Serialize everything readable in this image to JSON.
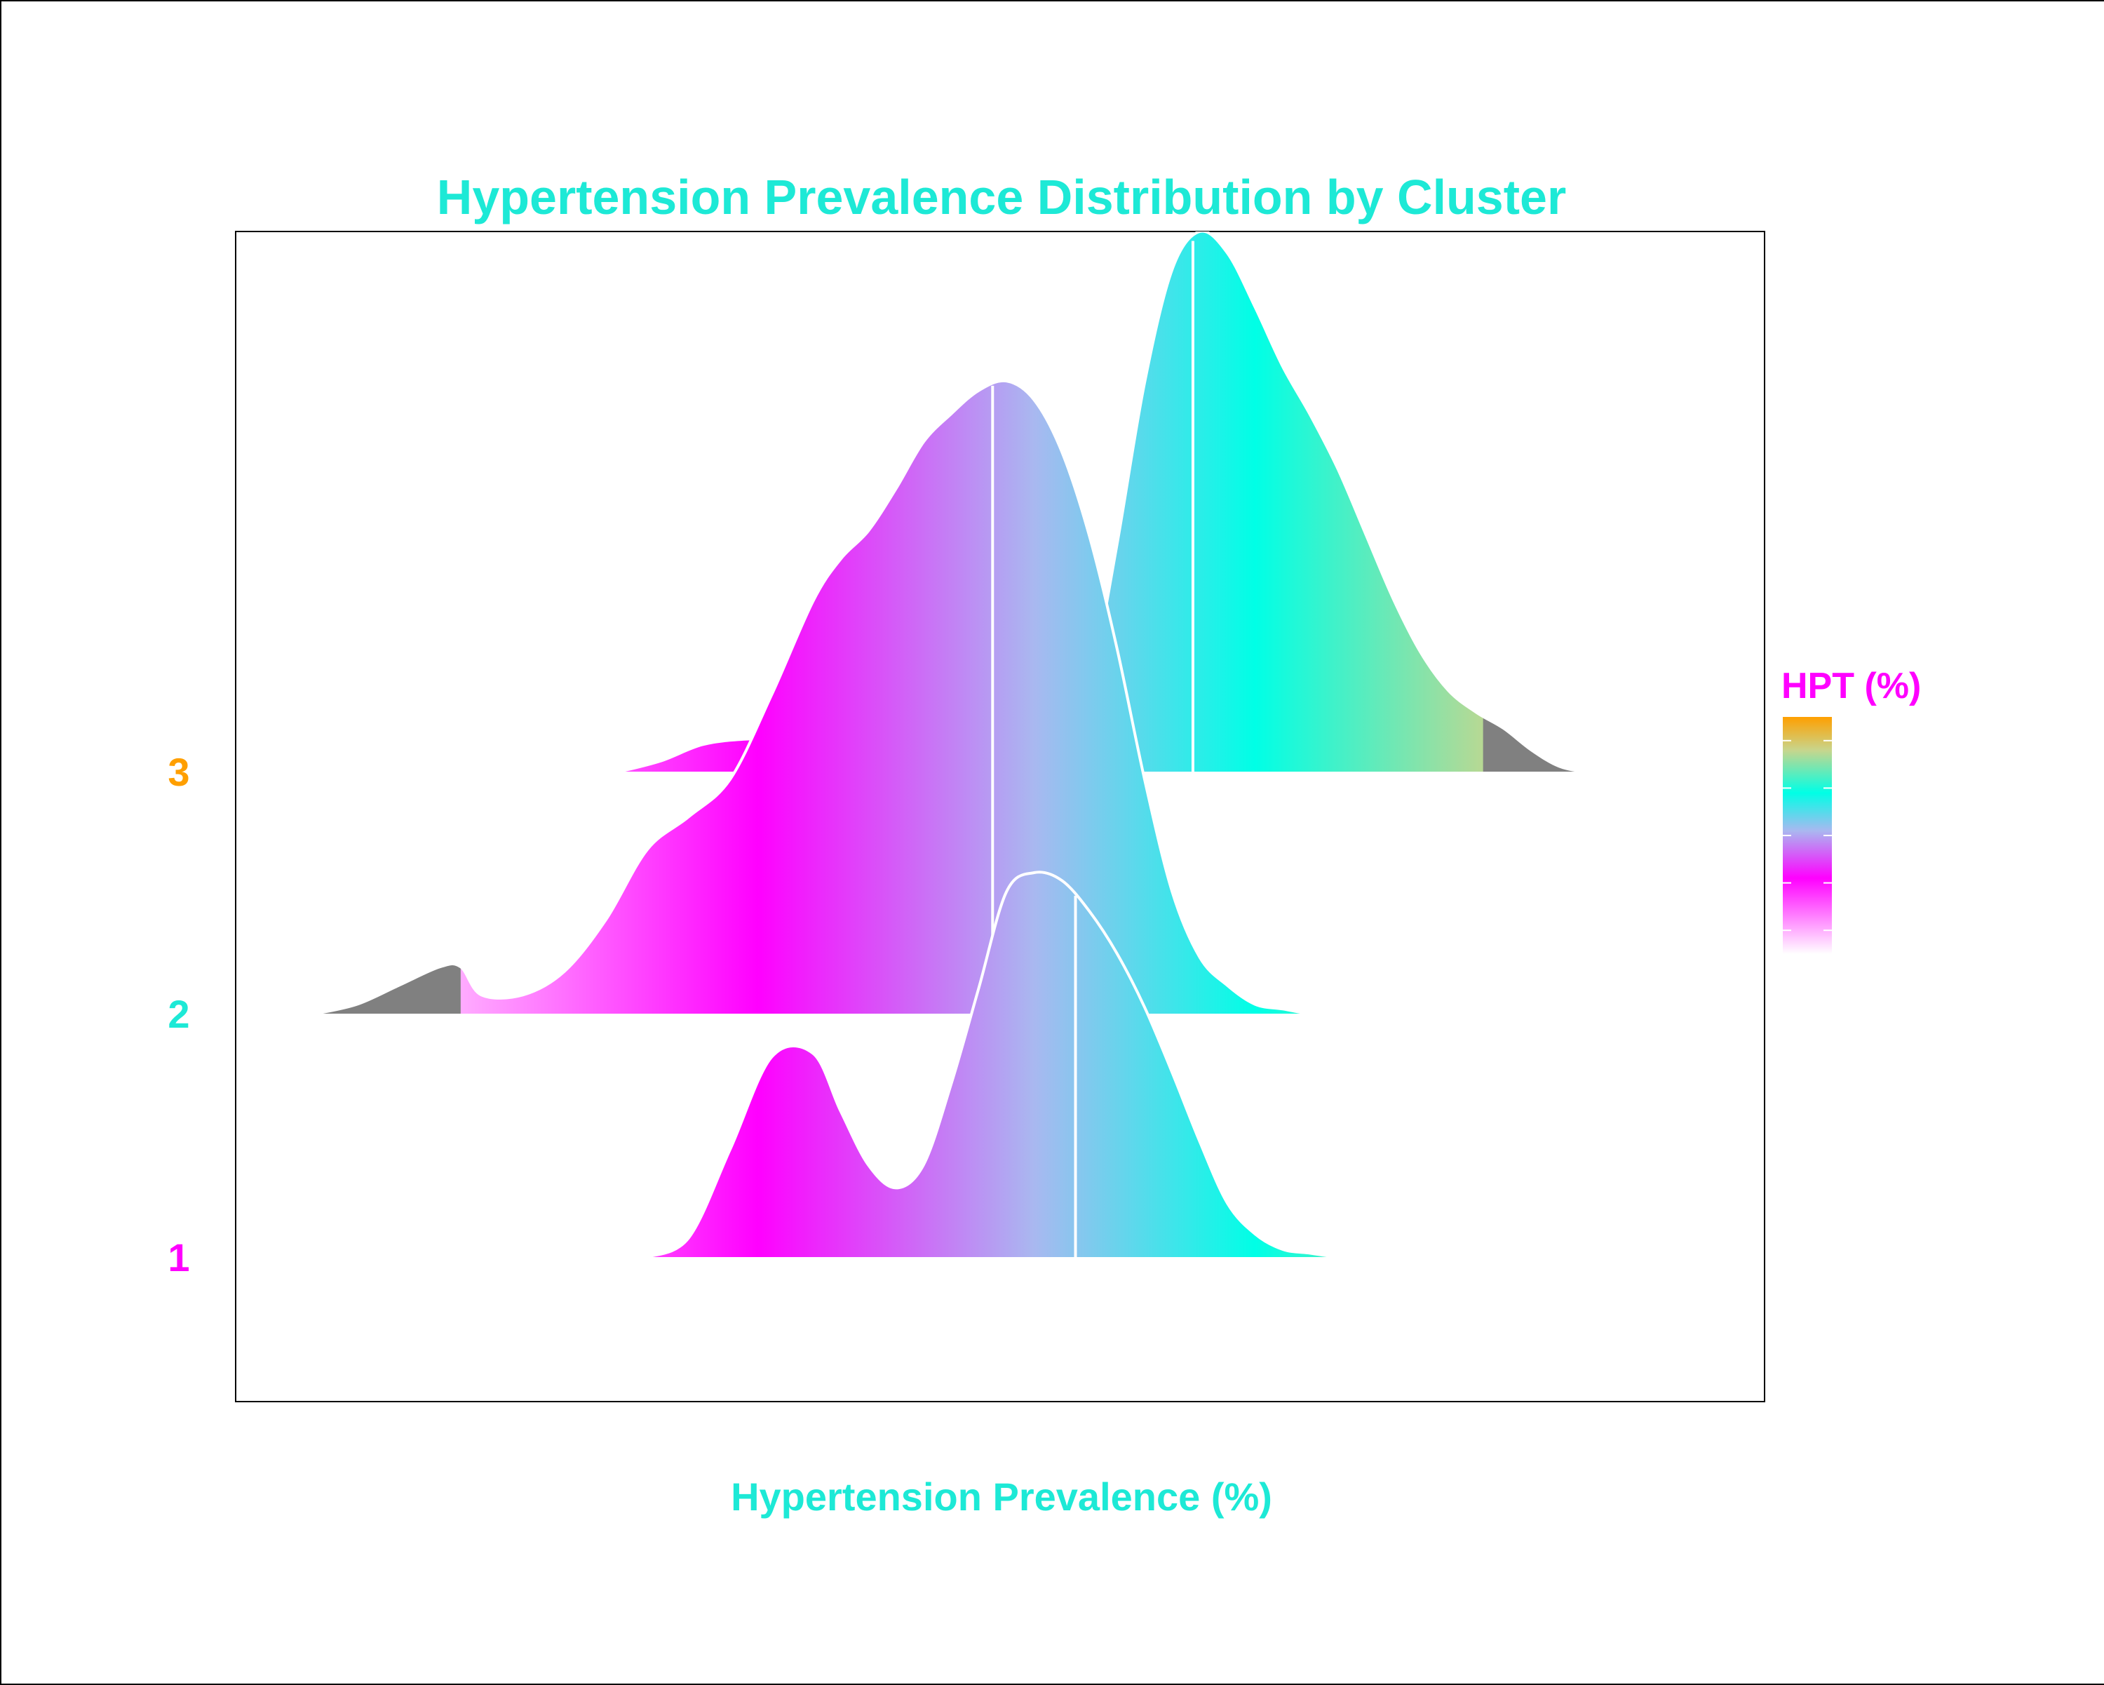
{
  "chart_data": {
    "type": "ridgeline",
    "title": "Hypertension Prevalence Distribution by Cluster",
    "xlabel": "Hypertension Prevalence (%)",
    "ylabel": "",
    "xlim": [
      0,
      100
    ],
    "legend": {
      "title": "HPT (%)",
      "placement": "right",
      "kind": "colorbar"
    },
    "colorscale": [
      {
        "value": 0.0,
        "color": "#ffffff"
      },
      {
        "value": 0.32,
        "color": "#ff00ff"
      },
      {
        "value": 0.52,
        "color": "#a9b8f0"
      },
      {
        "value": 0.68,
        "color": "#00ffe6"
      },
      {
        "value": 0.86,
        "color": "#c8d58c"
      },
      {
        "value": 1.0,
        "color": "#ff9f00"
      }
    ],
    "colors": {
      "title": "#1de9d6",
      "axis_label": "#1de9d6",
      "legend_title": "#ff00ff",
      "tail": "#808080",
      "median_line": "#ffffff",
      "cluster_1": "#ff00ff",
      "cluster_2": "#1de9d6",
      "cluster_3": "#ff9f00"
    },
    "series": [
      {
        "name": "1",
        "median": 55.0,
        "height": 1.0,
        "x": [
          24,
          27,
          30,
          33,
          36,
          38,
          40,
          42,
          44,
          46,
          48,
          50,
          52,
          54,
          56,
          58,
          60,
          62,
          64,
          66,
          68,
          70,
          72,
          74,
          76,
          77
        ],
        "density": [
          0.0,
          0.05,
          0.28,
          0.52,
          0.53,
          0.38,
          0.24,
          0.18,
          0.24,
          0.45,
          0.7,
          0.95,
          1.0,
          0.98,
          0.9,
          0.79,
          0.65,
          0.48,
          0.3,
          0.14,
          0.06,
          0.02,
          0.01,
          0.0,
          0.0,
          0.0
        ]
      },
      {
        "name": "2",
        "median": 49.0,
        "height": 1.0,
        "tail_below": 10.5,
        "tail_above": 100,
        "x": [
          0,
          3,
          6,
          9,
          10.5,
          12,
          15,
          18,
          21,
          24,
          27,
          30,
          33,
          36,
          38,
          40,
          42,
          44,
          46,
          48,
          50,
          52,
          54,
          56,
          58,
          60,
          62,
          64,
          66,
          68,
          70,
          72,
          74
        ],
        "density": [
          0.0,
          0.02,
          0.06,
          0.1,
          0.1,
          0.04,
          0.04,
          0.09,
          0.2,
          0.35,
          0.42,
          0.5,
          0.68,
          0.88,
          0.97,
          1.03,
          1.12,
          1.22,
          1.28,
          1.33,
          1.35,
          1.31,
          1.2,
          1.02,
          0.78,
          0.5,
          0.26,
          0.12,
          0.06,
          0.02,
          0.01,
          0.0,
          0.0
        ]
      },
      {
        "name": "3",
        "median": 63.5,
        "height": 1.0,
        "tail_above": 84.5,
        "x": [
          22,
          25,
          28,
          31,
          34,
          37,
          40,
          42,
          44,
          46,
          48,
          50,
          52,
          54,
          56,
          58,
          60,
          62,
          64,
          66,
          68,
          70,
          72,
          74,
          76,
          78,
          80,
          82,
          84,
          86,
          88,
          90,
          92,
          94
        ],
        "density": [
          0.0,
          0.02,
          0.05,
          0.06,
          0.06,
          0.05,
          0.02,
          0.0,
          0.0,
          0.0,
          0.0,
          0.0,
          0.0,
          0.0,
          0.15,
          0.42,
          0.72,
          0.93,
          1.0,
          0.96,
          0.86,
          0.75,
          0.66,
          0.56,
          0.44,
          0.32,
          0.22,
          0.15,
          0.11,
          0.08,
          0.04,
          0.01,
          0.0,
          0.0
        ]
      }
    ]
  }
}
